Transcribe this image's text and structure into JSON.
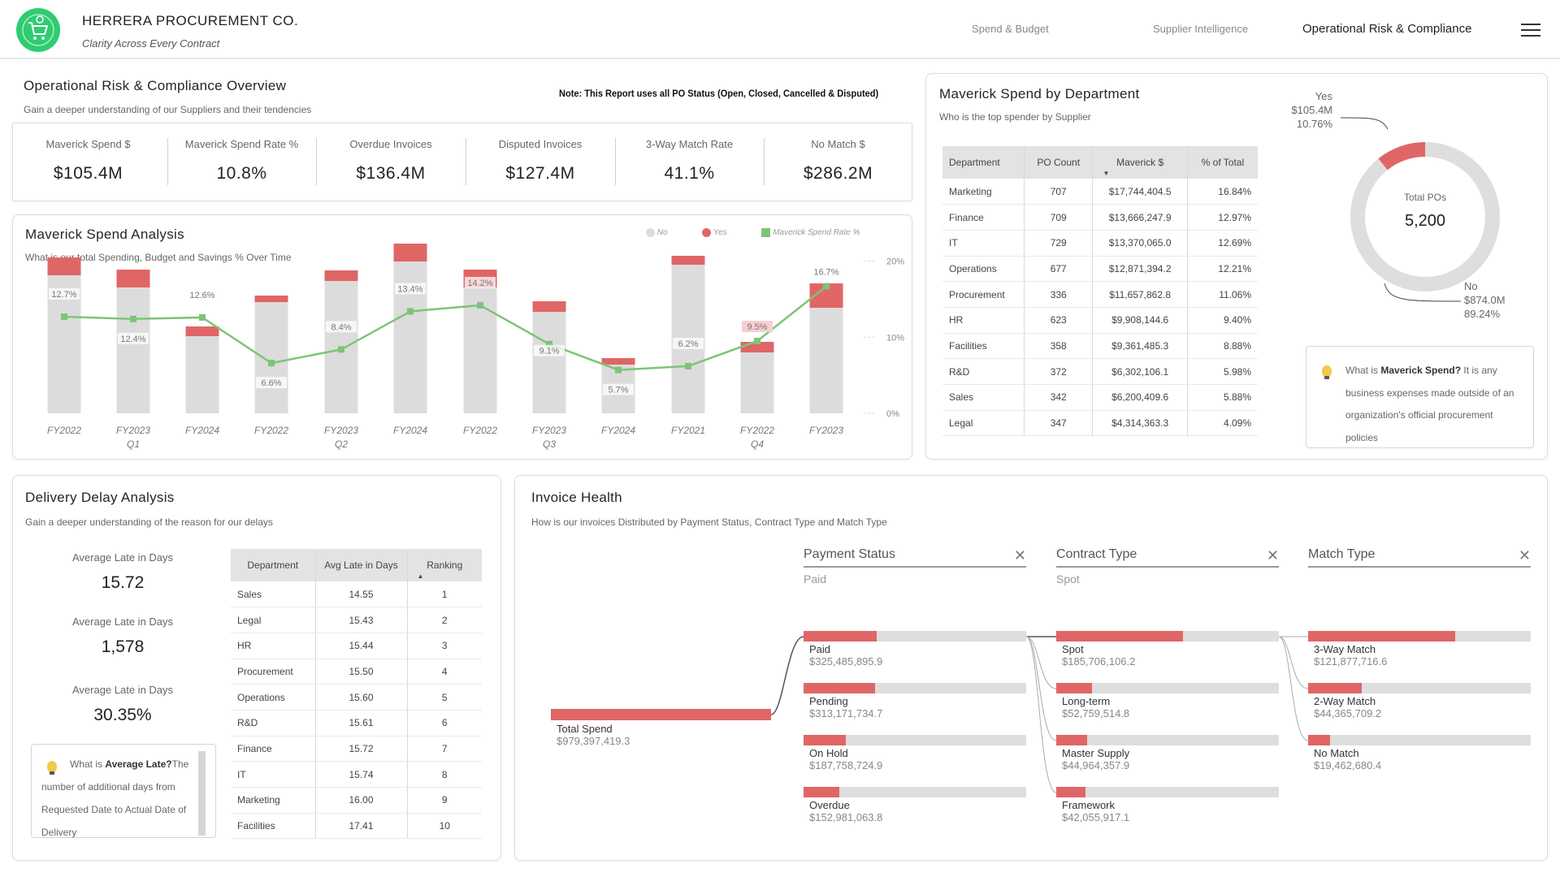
{
  "header": {
    "title": "HERRERA PROCUREMENT CO.",
    "tagline": "Clarity Across Every Contract",
    "nav": [
      "Spend & Budget",
      "Supplier Intelligence",
      "Operational Risk & Compliance"
    ],
    "active_nav": "Operational Risk & Compliance"
  },
  "overview": {
    "title": "Operational Risk & Compliance Overview",
    "subtitle": "Gain a deeper understanding of our Suppliers and their tendencies",
    "note": "Note: This Report uses all PO Status (Open, Closed, Cancelled & Disputed)",
    "kpis": [
      {
        "label": "Maverick Spend $",
        "value": "$105.4M"
      },
      {
        "label": "Maverick Spend Rate %",
        "value": "10.8%"
      },
      {
        "label": "Overdue Invoices",
        "value": "$136.4M"
      },
      {
        "label": "Disputed Invoices",
        "value": "$127.4M"
      },
      {
        "label": "3-Way Match Rate",
        "value": "41.1%"
      },
      {
        "label": "No Match $",
        "value": "$286.2M"
      }
    ]
  },
  "maverick_analysis": {
    "title": "Maverick Spend Analysis",
    "subtitle": "What is our  total Spending, Budget and Savings % Over Time",
    "legend": [
      "No",
      "Yes",
      "Maverick Spend Rate %"
    ],
    "right_ticks": [
      "20%",
      "10%",
      "0%"
    ],
    "quarters": [
      "Q1",
      "Q2",
      "Q3",
      "Q4"
    ]
  },
  "chart_data": {
    "type": "bar",
    "title": "Maverick Spend Analysis",
    "categories": [
      "FY2022",
      "FY2023",
      "FY2024",
      "FY2022",
      "FY2023",
      "FY2024",
      "FY2022",
      "FY2023",
      "FY2024",
      "FY2021",
      "FY2022",
      "FY2023"
    ],
    "groups": [
      "Q1",
      "Q1",
      "Q1",
      "Q2",
      "Q2",
      "Q2",
      "Q3",
      "Q3",
      "Q3",
      "Q4",
      "Q4",
      "Q4"
    ],
    "series": [
      {
        "name": "No",
        "values": [
          170,
          155,
          95,
          137,
          163,
          187,
          155,
          125,
          60,
          183,
          75,
          130
        ]
      },
      {
        "name": "Yes",
        "values": [
          22,
          22,
          12,
          8,
          13,
          22,
          22,
          13,
          8,
          11,
          13,
          30
        ]
      },
      {
        "name": "Maverick Spend Rate %",
        "values": [
          12.7,
          12.4,
          12.6,
          6.6,
          8.4,
          13.4,
          14.2,
          9.1,
          5.7,
          6.2,
          9.5,
          16.7
        ]
      }
    ],
    "rate_labels": [
      "12.7%",
      "12.4%",
      "12.6%",
      "6.6%",
      "8.4%",
      "13.4%",
      "14.2%",
      "9.1%",
      "5.7%",
      "6.2%",
      "9.5%",
      "16.7%"
    ],
    "y2lim": [
      0,
      20
    ],
    "colors": {
      "No": "#dcdcdc",
      "Yes": "#e06666",
      "Rate": "#7cc576"
    }
  },
  "dept_spend": {
    "title": "Maverick Spend by Department",
    "subtitle": "Who is the top spender by Supplier",
    "columns": [
      "Department",
      "PO Count",
      "Maverick $",
      "% of Total"
    ],
    "rows": [
      [
        "Marketing",
        "707",
        "$17,744,404.5",
        "16.84%"
      ],
      [
        "Finance",
        "709",
        "$13,666,247.9",
        "12.97%"
      ],
      [
        "IT",
        "729",
        "$13,370,065.0",
        "12.69%"
      ],
      [
        "Operations",
        "677",
        "$12,871,394.2",
        "12.21%"
      ],
      [
        "Procurement",
        "336",
        "$11,657,862.8",
        "11.06%"
      ],
      [
        "HR",
        "623",
        "$9,908,144.6",
        "9.40%"
      ],
      [
        "Facilities",
        "358",
        "$9,361,485.3",
        "8.88%"
      ],
      [
        "R&D",
        "372",
        "$6,302,106.1",
        "5.98%"
      ],
      [
        "Sales",
        "342",
        "$6,200,409.6",
        "5.88%"
      ],
      [
        "Legal",
        "347",
        "$4,314,363.3",
        "4.09%"
      ]
    ],
    "donut": {
      "center_label": "Total POs",
      "center_value": "5,200",
      "slices": [
        {
          "name": "Yes",
          "amount": "$105.4M",
          "pct": "10.76%",
          "value": 10.76
        },
        {
          "name": "No",
          "amount": "$874.0M",
          "pct": "89.24%",
          "value": 89.24
        }
      ]
    },
    "tip": {
      "prefix": "What is ",
      "bold": "Maverick Spend?",
      "text": " It is any business expenses made outside of an organization's official procurement policies"
    }
  },
  "delivery": {
    "title": "Delivery Delay Analysis",
    "subtitle": "Gain a deeper understanding of the reason for our delays",
    "kpis": [
      {
        "label": "Average Late in Days",
        "value": "15.72"
      },
      {
        "label": "Average Late in Days",
        "value": "1,578"
      },
      {
        "label": "Average Late in Days",
        "value": "30.35%"
      }
    ],
    "columns": [
      "Department",
      "Avg Late in Days",
      "Ranking"
    ],
    "rows": [
      [
        "Sales",
        "14.55",
        "1"
      ],
      [
        "Legal",
        "15.43",
        "2"
      ],
      [
        "HR",
        "15.44",
        "3"
      ],
      [
        "Procurement",
        "15.50",
        "4"
      ],
      [
        "Operations",
        "15.60",
        "5"
      ],
      [
        "R&D",
        "15.61",
        "6"
      ],
      [
        "Finance",
        "15.72",
        "7"
      ],
      [
        "IT",
        "15.74",
        "8"
      ],
      [
        "Marketing",
        "16.00",
        "9"
      ],
      [
        "Facilities",
        "17.41",
        "10"
      ]
    ],
    "tip": {
      "prefix": "What is ",
      "bold": "Average Late?",
      "text": "The number of additional days from Requested Date to Actual Date of Delivery"
    }
  },
  "invoice": {
    "title": "Invoice Health",
    "subtitle": "How is our invoices Distributed by Payment Status, Contract Type and Match Type",
    "filters": [
      {
        "label": "Payment Status",
        "value": "Paid"
      },
      {
        "label": "Contract Type",
        "value": "Spot"
      },
      {
        "label": "Match Type",
        "value": ""
      }
    ],
    "root": {
      "name": "Total Spend",
      "value": "$979,397,419.3"
    },
    "payment": [
      {
        "name": "Paid",
        "value": "$325,485,895.9",
        "fill": 0.33
      },
      {
        "name": "Pending",
        "value": "$313,171,734.7",
        "fill": 0.32
      },
      {
        "name": "On Hold",
        "value": "$187,758,724.9",
        "fill": 0.19
      },
      {
        "name": "Overdue",
        "value": "$152,981,063.8",
        "fill": 0.16
      }
    ],
    "contract": [
      {
        "name": "Spot",
        "value": "$185,706,106.2",
        "fill": 0.57
      },
      {
        "name": "Long-term",
        "value": "$52,759,514.8",
        "fill": 0.16
      },
      {
        "name": "Master Supply",
        "value": "$44,964,357.9",
        "fill": 0.14
      },
      {
        "name": "Framework",
        "value": "$42,055,917.1",
        "fill": 0.13
      }
    ],
    "match": [
      {
        "name": "3-Way Match",
        "value": "$121,877,716.6",
        "fill": 0.66
      },
      {
        "name": "2-Way Match",
        "value": "$44,365,709.2",
        "fill": 0.24
      },
      {
        "name": "No Match",
        "value": "$19,462,680.4",
        "fill": 0.1
      }
    ]
  }
}
